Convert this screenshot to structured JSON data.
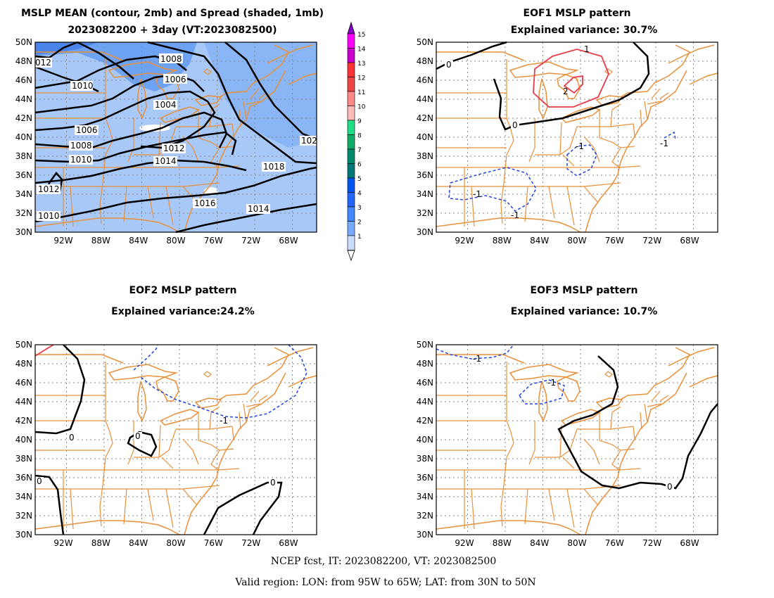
{
  "panels": {
    "p1": {
      "title_line1": "MSLP MEAN (contour, 2mb) and Spread (shaded, 1mb)",
      "title_line2": "2023082200 + 3day (VT:2023082500)",
      "contour_labels": [
        "012",
        "1010",
        "1008",
        "1006",
        "1004",
        "1006",
        "1008",
        "1010",
        "1012",
        "1014",
        "1012",
        "1010",
        "1016",
        "1014",
        "1018",
        "102"
      ]
    },
    "p2": {
      "title_line1": "EOF1 MSLP pattern",
      "title_line2": "Explained variance: 30.7%",
      "contour_labels": [
        "0",
        "0",
        "1",
        "2",
        "-1",
        "-1",
        "-1",
        "-1"
      ]
    },
    "p3": {
      "title_line1": "EOF2 MSLP pattern",
      "title_line2": "Explained variance:24.2%",
      "contour_labels": [
        "0",
        "0",
        "0",
        "0",
        "-1"
      ]
    },
    "p4": {
      "title_line1": "EOF3 MSLP pattern",
      "title_line2": "Explained variance: 10.7%",
      "contour_labels": [
        "-1",
        "-1",
        "0"
      ]
    }
  },
  "axes": {
    "lat_labels": [
      "50N",
      "48N",
      "46N",
      "44N",
      "42N",
      "40N",
      "38N",
      "36N",
      "34N",
      "32N",
      "30N"
    ],
    "lon_labels": [
      "92W",
      "88W",
      "84W",
      "80W",
      "76W",
      "72W",
      "68W"
    ],
    "lon_range": [
      -95,
      -65
    ],
    "lat_range": [
      30,
      50
    ]
  },
  "colorbar": {
    "values": [
      "15",
      "14",
      "13",
      "12",
      "11",
      "10",
      "9",
      "8",
      "7",
      "6",
      "5",
      "4",
      "3",
      "2",
      "1"
    ],
    "colors": [
      "#ff00ff",
      "#cc00cc",
      "#ff3333",
      "#ee4444",
      "#ff8888",
      "#ffbbbb",
      "#22dd88",
      "#11aa66",
      "#008a6a",
      "#007777",
      "#0055ee",
      "#2266ff",
      "#4488ff",
      "#77aaff",
      "#ccdcff"
    ]
  },
  "footer": {
    "line1": "NCEP fcst, IT: 2023082200, VT: 2023082500",
    "line2": "Valid region: LON: from 95W to 65W; LAT: from 30N to 50N"
  },
  "style_colors": {
    "map_lines": "#e8903a",
    "grid": "#888888",
    "positive_contour": "#e83c4a",
    "negative_contour": "#2244dd",
    "zero_contour": "#000000",
    "shading_base": "#a8c8f8"
  }
}
